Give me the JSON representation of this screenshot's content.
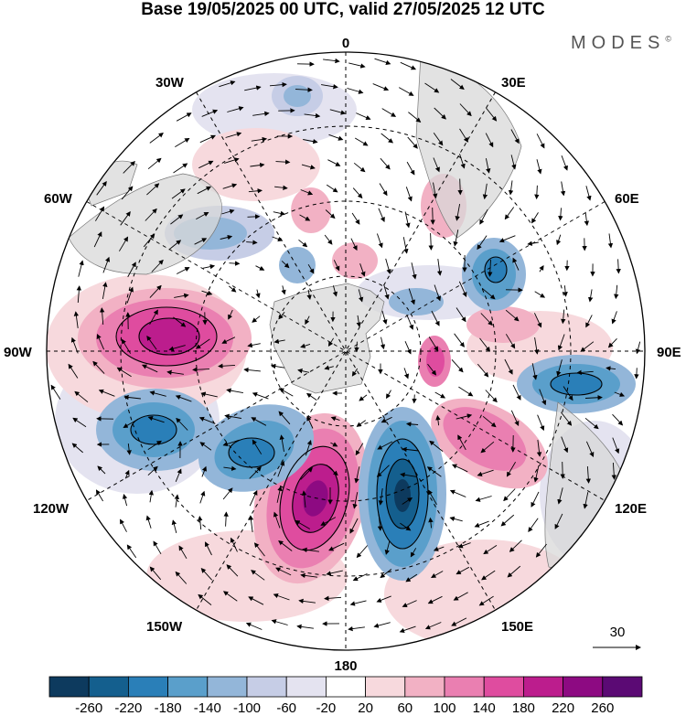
{
  "title": "Base 19/05/2025 00 UTC, valid 27/05/2025 12 UTC",
  "brand": "MODES",
  "brand_mark": "©",
  "longitude_labels": {
    "top": "0",
    "bottom": "180",
    "left": "90W",
    "right": "90E",
    "nw1": "30W",
    "nw2": "60W",
    "ne1": "30E",
    "ne2": "60E",
    "sw1": "120W",
    "sw2": "150W",
    "se1": "120E",
    "se2": "150E"
  },
  "vector_reference": "30",
  "colorbar": {
    "ticks": [
      "-260",
      "-220",
      "-180",
      "-140",
      "-100",
      "-60",
      "-20",
      "20",
      "60",
      "100",
      "140",
      "180",
      "220",
      "260"
    ],
    "colors": [
      "#0d3a5e",
      "#145f8e",
      "#2a7fb8",
      "#5a9fcb",
      "#93b6d9",
      "#c6cde6",
      "#e4e3f0",
      "#ffffff",
      "#f7d9dd",
      "#f2b1c4",
      "#ea7fb1",
      "#df4c9f",
      "#bc1d8d",
      "#8d0a82",
      "#5b0a74"
    ]
  }
}
